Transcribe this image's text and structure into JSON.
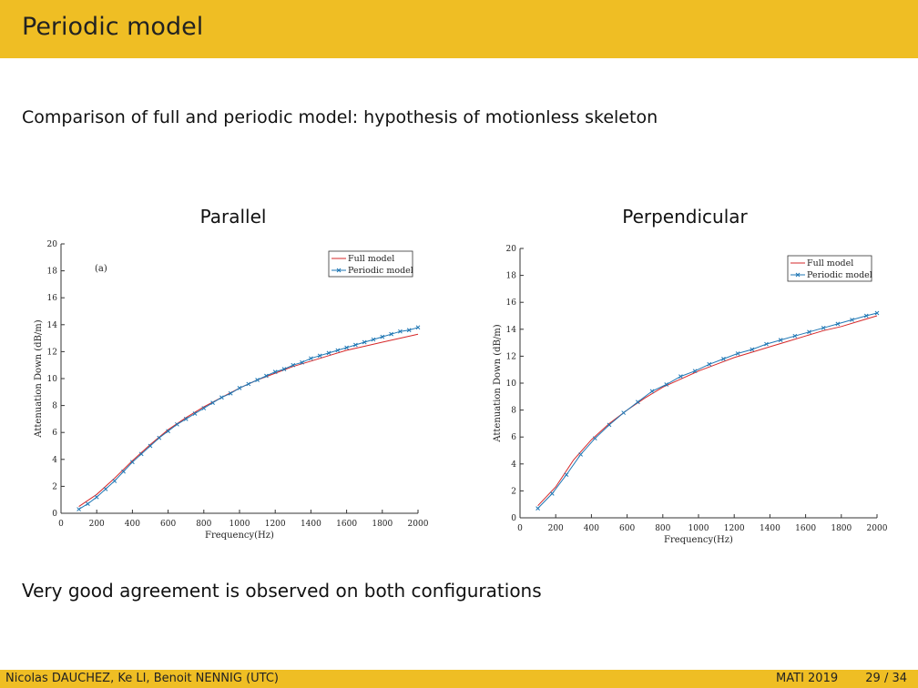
{
  "slide": {
    "title": "Periodic model",
    "subtitle": "Comparison of full and periodic model: hypothesis of motionless skeleton",
    "conclusion": "Very good agreement is observed on both configurations",
    "footer_authors": "Nicolas DAUCHEZ, Ke LI, Benoit NENNIG  (UTC)",
    "footer_event": "MATI 2019",
    "footer_page": "29 / 34",
    "accent_color": "#efbe24"
  },
  "chart_data": [
    {
      "type": "line",
      "heading": "Parallel",
      "annotation": "(a)",
      "xlabel": "Frequency(Hz)",
      "ylabel": "Attenuation Down (dB/m)",
      "xlim": [
        0,
        2000
      ],
      "ylim": [
        0,
        20
      ],
      "xticks": [
        0,
        200,
        400,
        600,
        800,
        1000,
        1200,
        1400,
        1600,
        1800,
        2000
      ],
      "yticks": [
        0,
        2,
        4,
        6,
        8,
        10,
        12,
        14,
        16,
        18,
        20
      ],
      "legend_position": "top-right",
      "grid": false,
      "series": [
        {
          "name": "Full model",
          "color": "#d62728",
          "marker": "none",
          "x": [
            100,
            200,
            300,
            400,
            500,
            600,
            700,
            800,
            900,
            1000,
            1100,
            1200,
            1300,
            1400,
            1500,
            1600,
            1700,
            1800,
            1900,
            2000
          ],
          "y": [
            0.5,
            1.4,
            2.6,
            3.9,
            5.1,
            6.2,
            7.1,
            7.9,
            8.6,
            9.3,
            9.9,
            10.4,
            10.9,
            11.3,
            11.7,
            12.1,
            12.4,
            12.7,
            13.0,
            13.3
          ]
        },
        {
          "name": "Periodic model",
          "color": "#1f77b4",
          "marker": "x",
          "x": [
            100,
            150,
            200,
            250,
            300,
            350,
            400,
            450,
            500,
            550,
            600,
            650,
            700,
            750,
            800,
            850,
            900,
            950,
            1000,
            1050,
            1100,
            1150,
            1200,
            1250,
            1300,
            1350,
            1400,
            1450,
            1500,
            1550,
            1600,
            1650,
            1700,
            1750,
            1800,
            1850,
            1900,
            1950,
            2000
          ],
          "y": [
            0.3,
            0.7,
            1.2,
            1.8,
            2.4,
            3.1,
            3.8,
            4.4,
            5.0,
            5.6,
            6.1,
            6.6,
            7.0,
            7.4,
            7.8,
            8.2,
            8.6,
            8.9,
            9.3,
            9.6,
            9.9,
            10.2,
            10.5,
            10.7,
            11.0,
            11.2,
            11.5,
            11.7,
            11.9,
            12.1,
            12.3,
            12.5,
            12.7,
            12.9,
            13.1,
            13.3,
            13.5,
            13.6,
            13.8
          ]
        }
      ]
    },
    {
      "type": "line",
      "heading": "Perpendicular",
      "xlabel": "Frequency(Hz)",
      "ylabel": "Attenuation Down (dB/m)",
      "xlim": [
        0,
        2000
      ],
      "ylim": [
        0,
        20
      ],
      "xticks": [
        0,
        200,
        400,
        600,
        800,
        1000,
        1200,
        1400,
        1600,
        1800,
        2000
      ],
      "yticks": [
        0,
        2,
        4,
        6,
        8,
        10,
        12,
        14,
        16,
        18,
        20
      ],
      "legend_position": "top-right",
      "grid": false,
      "series": [
        {
          "name": "Full model",
          "color": "#d62728",
          "marker": "none",
          "x": [
            100,
            200,
            300,
            400,
            500,
            600,
            700,
            800,
            900,
            1000,
            1100,
            1200,
            1300,
            1400,
            1500,
            1600,
            1700,
            1800,
            1900,
            2000
          ],
          "y": [
            0.9,
            2.3,
            4.3,
            5.8,
            7.0,
            8.0,
            8.9,
            9.7,
            10.3,
            10.9,
            11.4,
            11.9,
            12.3,
            12.7,
            13.1,
            13.5,
            13.9,
            14.2,
            14.6,
            15.0
          ]
        },
        {
          "name": "Periodic model",
          "color": "#1f77b4",
          "marker": "x",
          "x": [
            100,
            180,
            260,
            340,
            420,
            500,
            580,
            660,
            740,
            820,
            900,
            980,
            1060,
            1140,
            1220,
            1300,
            1380,
            1460,
            1540,
            1620,
            1700,
            1780,
            1860,
            1940,
            2000
          ],
          "y": [
            0.7,
            1.8,
            3.2,
            4.7,
            5.9,
            6.9,
            7.8,
            8.6,
            9.4,
            9.9,
            10.5,
            10.9,
            11.4,
            11.8,
            12.2,
            12.5,
            12.9,
            13.2,
            13.5,
            13.8,
            14.1,
            14.4,
            14.7,
            15.0,
            15.2
          ]
        }
      ]
    }
  ]
}
